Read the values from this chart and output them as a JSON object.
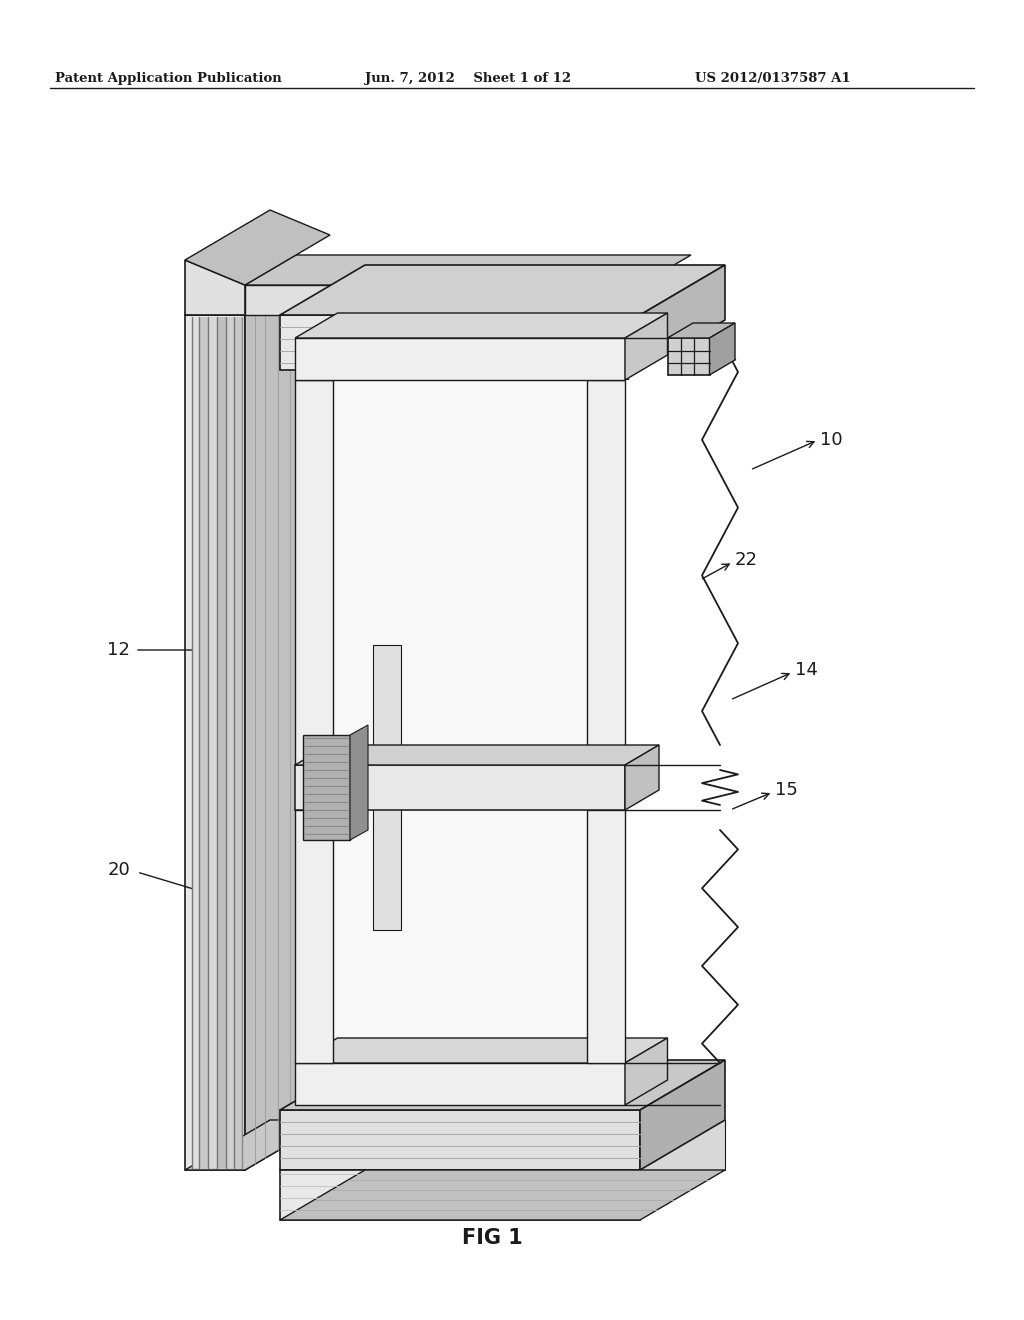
{
  "background_color": "#ffffff",
  "header_text": "Patent Application Publication",
  "header_date": "Jun. 7, 2012",
  "header_sheet": "Sheet 1 of 12",
  "header_patent": "US 2012/0137587 A1",
  "figure_label": "FIG 1",
  "text_color": "#000000",
  "drawing": {
    "frame_front_color": "#e8e8e8",
    "frame_side_color": "#c8c8c8",
    "frame_top_color": "#d8d8d8",
    "sash_color": "#f0f0f0",
    "dark_line": "#1a1a1a",
    "mid_gray": "#999999",
    "light_gray": "#dddddd",
    "groove_dark": "#888888",
    "groove_mid": "#bbbbbb"
  }
}
